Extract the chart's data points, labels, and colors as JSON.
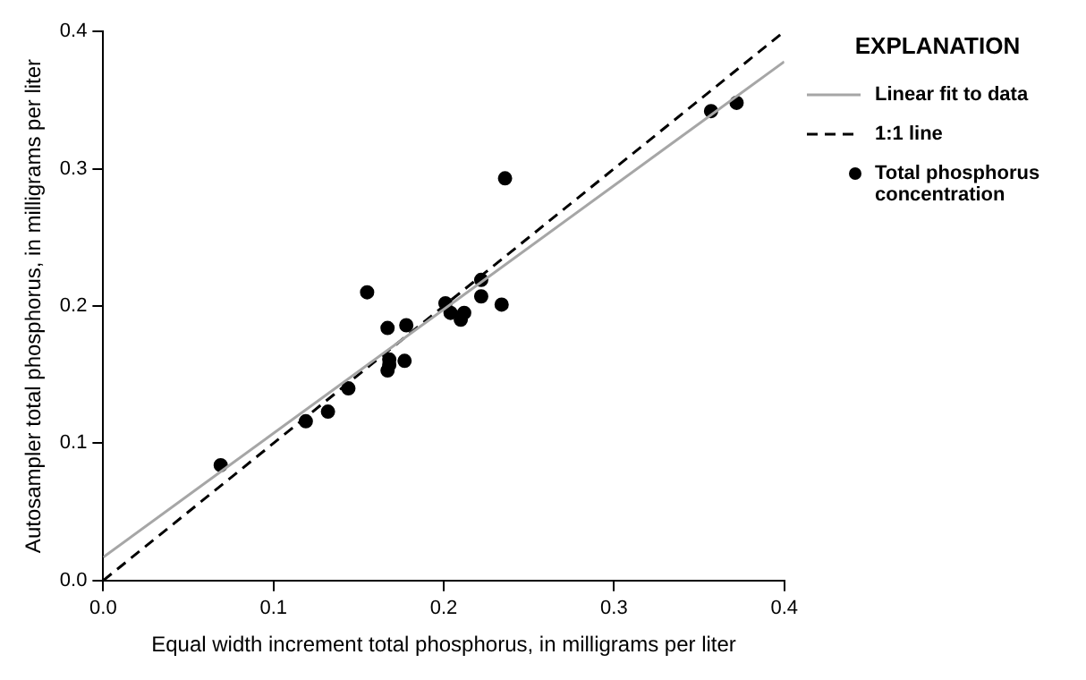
{
  "chart_data": {
    "type": "scatter",
    "xlabel": "Equal width increment total phosphorus, in milligrams per liter",
    "ylabel": "Autosampler total phosphorus, in milligrams per liter",
    "legend_title": "EXPLANATION",
    "legend": "right",
    "grid": false,
    "xlim": [
      0,
      0.4
    ],
    "ylim": [
      0,
      0.4
    ],
    "xticks": [
      {
        "value": 0,
        "label": "0.0"
      },
      0.1,
      0.2,
      0.3,
      0.4
    ],
    "yticks": [
      {
        "value": 0,
        "label": "0.0"
      },
      0.1,
      0.2,
      0.3,
      0.4
    ],
    "series": [
      {
        "name": "Linear fit to data",
        "type": "line",
        "marker": "none",
        "line_style": "solid",
        "color": "#a6a6a6",
        "x": [
          0,
          0.4
        ],
        "values": [
          0.017,
          0.378
        ]
      },
      {
        "name": "1:1 line",
        "type": "line",
        "marker": "none",
        "line_style": "dashed",
        "color": "#000000",
        "x": [
          0,
          0.4
        ],
        "values": [
          0,
          0.4
        ]
      },
      {
        "name": "Total phosphorus concentration",
        "type": "scatter",
        "marker": "circle",
        "color": "#000000",
        "x": [
          0.069,
          0.119,
          0.132,
          0.144,
          0.155,
          0.167,
          0.178,
          0.168,
          0.167,
          0.168,
          0.177,
          0.201,
          0.204,
          0.212,
          0.21,
          0.222,
          0.222,
          0.234,
          0.236,
          0.357,
          0.372
        ],
        "values": [
          0.084,
          0.116,
          0.123,
          0.14,
          0.21,
          0.184,
          0.186,
          0.161,
          0.153,
          0.157,
          0.16,
          0.202,
          0.195,
          0.195,
          0.19,
          0.219,
          0.207,
          0.201,
          0.293,
          0.342,
          0.348
        ]
      }
    ]
  }
}
